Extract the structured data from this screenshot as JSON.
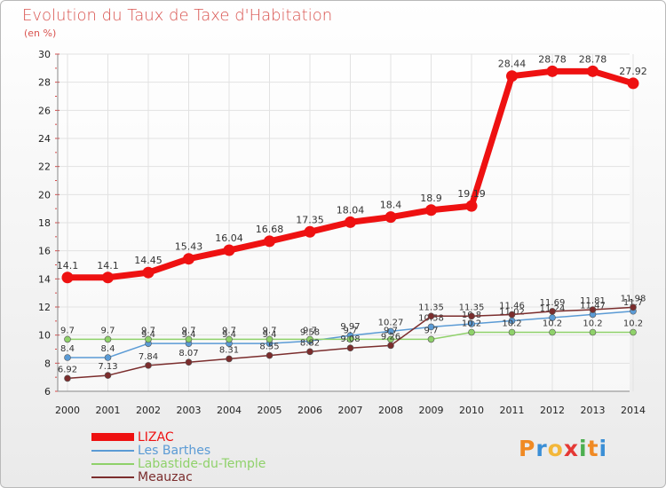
{
  "title": "Evolution du Taux de Taxe d'Habitation",
  "subtitle": "(en %)",
  "logo": {
    "letters": [
      "P",
      "r",
      "o",
      "x",
      "i",
      "t",
      "i"
    ],
    "colors": [
      "#f08a24",
      "#3b8fd6",
      "#f3b73a",
      "#e53935",
      "#4caf50",
      "#f08a24",
      "#3b8fd6"
    ]
  },
  "chart_data": {
    "type": "line",
    "categories": [
      "2000",
      "2001",
      "2002",
      "2003",
      "2004",
      "2005",
      "2006",
      "2007",
      "2008",
      "2009",
      "2010",
      "2011",
      "2012",
      "2013",
      "2014"
    ],
    "ylim": [
      6,
      30
    ],
    "yticks": [
      "6",
      "8",
      "10",
      "12",
      "14",
      "16",
      "18",
      "20",
      "22",
      "24",
      "26",
      "28",
      "30"
    ],
    "series": [
      {
        "name": "LIZAC",
        "color": "#ee1111",
        "values": [
          14.1,
          14.1,
          14.45,
          15.43,
          16.04,
          16.68,
          17.35,
          18.04,
          18.4,
          18.9,
          19.19,
          28.44,
          28.78,
          28.78,
          27.92
        ],
        "labels": [
          "14.1",
          "14.1",
          "14.45",
          "15.43",
          "16.04",
          "16.68",
          "17.35",
          "18.04",
          "18.4",
          "18.9",
          "19.19",
          "28.44",
          "28.78",
          "28.78",
          "27.92"
        ]
      },
      {
        "name": "Les Barthes",
        "color": "#5b9bd5",
        "values": [
          8.4,
          8.4,
          9.4,
          9.4,
          9.4,
          9.4,
          9.58,
          9.97,
          10.27,
          10.58,
          10.8,
          11.02,
          11.24,
          11.47,
          11.7
        ],
        "labels": [
          "8.4",
          "8.4",
          "9.4",
          "9.4",
          "9.4",
          "9.4",
          "9.58",
          "9.97",
          "10.27",
          "10.58",
          "10.8",
          "11.02",
          "11.24",
          "11.47",
          "11.7"
        ]
      },
      {
        "name": "Labastide-du-Temple",
        "color": "#8fd16a",
        "values": [
          9.7,
          9.7,
          9.7,
          9.7,
          9.7,
          9.7,
          9.7,
          9.7,
          9.7,
          9.7,
          10.2,
          10.2,
          10.2,
          10.2,
          10.2
        ],
        "labels": [
          "9.7",
          "9.7",
          "9.7",
          "9.7",
          "9.7",
          "9.7",
          "9.7",
          "9.7",
          "9.7",
          "9.7",
          "10.2",
          "10.2",
          "10.2",
          "10.2",
          "10.2"
        ]
      },
      {
        "name": "Meauzac",
        "color": "#7b2d2d",
        "values": [
          6.92,
          7.13,
          7.84,
          8.07,
          8.31,
          8.55,
          8.82,
          9.08,
          9.26,
          11.35,
          11.35,
          11.46,
          11.69,
          11.81,
          11.98
        ],
        "labels": [
          "6.92",
          "7.13",
          "7.84",
          "8.07",
          "8.31",
          "8.55",
          "8.82",
          "9.08",
          "9.26",
          "11.35",
          "11.35",
          "11.46",
          "11.69",
          "11.81",
          "11.98"
        ]
      }
    ]
  }
}
